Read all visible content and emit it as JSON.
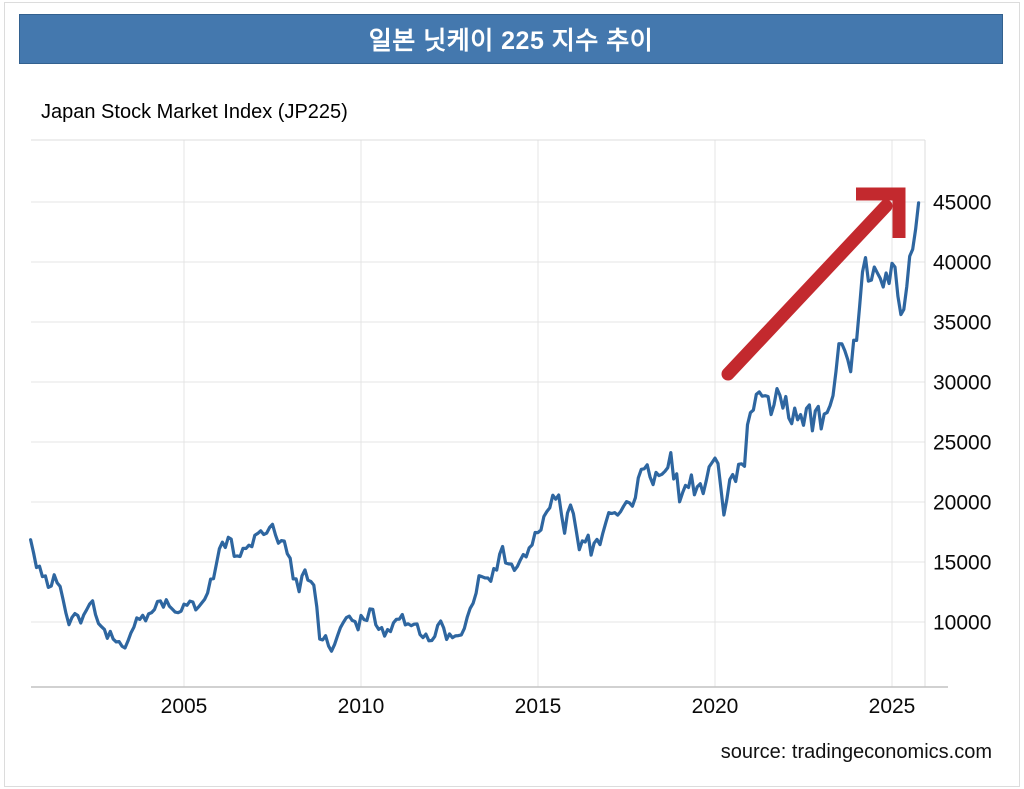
{
  "banner": {
    "title": "일본 닛케이 225 지수 추이",
    "bg_color": "#4478ae",
    "text_color": "#ffffff"
  },
  "chart": {
    "subtitle": "Japan Stock Market Index (JP225)",
    "source": "source: tradingeconomics.com"
  },
  "chart_data": {
    "type": "line",
    "title": "Japan Stock Market Index (JP225)",
    "series_name": "Nikkei 225 (JP225)",
    "frequency": "monthly",
    "start": "2000-08",
    "end": "2025-09",
    "x_ticks": [
      2005,
      2010,
      2015,
      2020,
      2025
    ],
    "y_ticks": [
      10000,
      15000,
      20000,
      25000,
      30000,
      35000,
      40000,
      45000
    ],
    "xlim": [
      2000.65,
      2025.9
    ],
    "ylim": [
      4600,
      50200
    ],
    "grid": true,
    "y_axis_side": "right",
    "line_color": "#2e66a0",
    "grid_color": "#e4e4e4",
    "frame_color": "#dcdcdc",
    "axis_color": "#c2c2c2",
    "annotation": {
      "type": "arrow",
      "direction": "up-right",
      "color": "#c3292e"
    },
    "values": [
      16861,
      15747,
      14540,
      14649,
      13786,
      13844,
      12884,
      12999,
      13934,
      13262,
      12969,
      11861,
      10714,
      9775,
      10366,
      10697,
      10543,
      9919,
      10588,
      11025,
      11492,
      11764,
      10622,
      9878,
      9619,
      9383,
      8640,
      9216,
      8579,
      8339,
      8363,
      7973,
      7831,
      8425,
      9083,
      9563,
      10343,
      10219,
      10559,
      10100,
      10677,
      10784,
      11041,
      11715,
      11762,
      11236,
      11859,
      11326,
      11082,
      10824,
      10771,
      10899,
      11489,
      11388,
      11740,
      11669,
      11009,
      11277,
      11584,
      11900,
      12414,
      13574,
      13607,
      14872,
      16111,
      16649,
      16205,
      17060,
      16906,
      15467,
      15505,
      15457,
      16141,
      16128,
      16399,
      16274,
      17226,
      17383,
      17604,
      17288,
      17400,
      17876,
      18138,
      17249,
      16569,
      16786,
      16738,
      15681,
      15308,
      13592,
      13603,
      12526,
      13850,
      14339,
      13481,
      13377,
      13073,
      11260,
      8577,
      8512,
      8860,
      7994,
      7568,
      8110,
      8828,
      9523,
      9958,
      10357,
      10493,
      10133,
      10035,
      9346,
      10546,
      10198,
      10126,
      11090,
      11057,
      9769,
      9383,
      9537,
      8824,
      9369,
      9202,
      9937,
      10229,
      10238,
      10624,
      9755,
      9850,
      9694,
      9816,
      9833,
      8955,
      8700,
      8988,
      8435,
      8455,
      8803,
      9723,
      10084,
      9521,
      8543,
      9007,
      8695,
      8840,
      8870,
      8928,
      9446,
      10395,
      11139,
      11559,
      12398,
      13861,
      13775,
      13677,
      13668,
      13389,
      14456,
      14328,
      15662,
      16291,
      14914,
      14841,
      14828,
      14304,
      14632,
      15162,
      15621,
      15425,
      16174,
      16414,
      17460,
      17451,
      17674,
      18798,
      19207,
      19520,
      20563,
      20236,
      20585,
      18890,
      17388,
      19083,
      19747,
      19034,
      17518,
      16027,
      16759,
      16666,
      17235,
      15576,
      16569,
      16887,
      16450,
      17425,
      18308,
      19114,
      19041,
      19119,
      18909,
      19197,
      19651,
      20033,
      19925,
      19646,
      20356,
      22012,
      22725,
      22765,
      23098,
      22068,
      21454,
      22468,
      22202,
      22305,
      22554,
      22865,
      24120,
      21920,
      22351,
      20015,
      20773,
      21385,
      21206,
      22259,
      20601,
      21276,
      21522,
      20704,
      21756,
      22927,
      23294,
      23657,
      23205,
      21143,
      18917,
      20194,
      21878,
      22288,
      21710,
      23140,
      23185,
      22977,
      26434,
      27444,
      27663,
      28966,
      29179,
      28813,
      28860,
      28792,
      27284,
      28090,
      29453,
      28893,
      27822,
      28792,
      27002,
      26527,
      27821,
      26848,
      27280,
      26393,
      27802,
      28092,
      25937,
      27587,
      27969,
      26095,
      27327,
      27446,
      28041,
      28856,
      30888,
      33189,
      33172,
      32619,
      31858,
      30859,
      33487,
      33464,
      36287,
      39166,
      40369,
      38406,
      38488,
      39583,
      39102,
      38648,
      37920,
      39081,
      38208,
      39895,
      39572,
      37156,
      35618,
      36045,
      37965,
      40487,
      41070,
      42718,
      44932
    ]
  }
}
